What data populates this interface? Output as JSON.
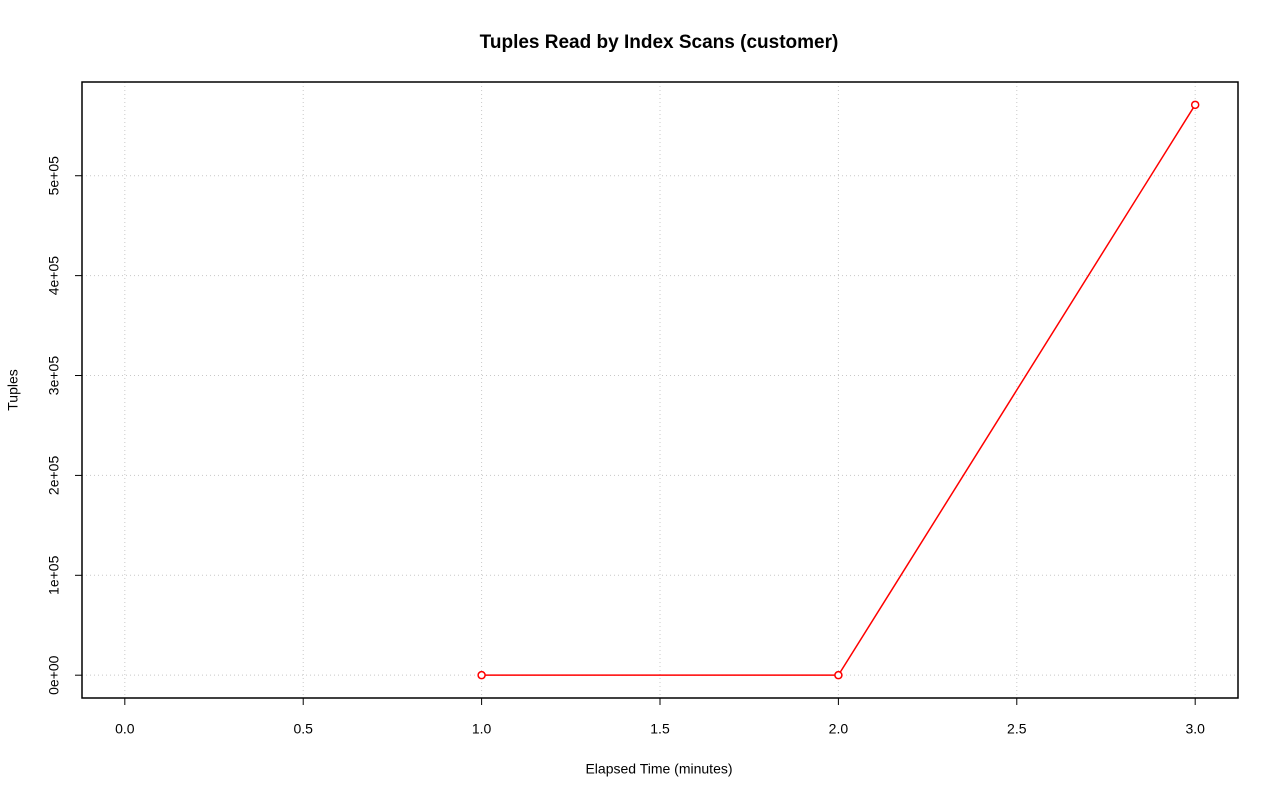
{
  "chart_data": {
    "type": "line",
    "title": "Tuples Read by Index Scans (customer)",
    "x_label": "Elapsed Time (minutes)",
    "y_label": "Tuples",
    "x": [
      1,
      2,
      3
    ],
    "series": [
      {
        "name": "customer",
        "color": "#ff0000",
        "values": [
          0,
          0,
          571000
        ]
      }
    ],
    "xlim": [
      -0.12,
      3.12
    ],
    "ylim": [
      -22840,
      593840
    ],
    "xticks": [
      {
        "value": 0,
        "label": "0.0"
      },
      0.5,
      {
        "value": 1,
        "label": "1.0"
      },
      1.5,
      {
        "value": 2,
        "label": "2.0"
      },
      2.5,
      {
        "value": 3,
        "label": "3.0"
      }
    ],
    "yticks": [
      {
        "value": 0,
        "label": "0e+00"
      },
      {
        "value": 100000,
        "label": "1e+05"
      },
      {
        "value": 200000,
        "label": "2e+05"
      },
      {
        "value": 300000,
        "label": "3e+05"
      },
      {
        "value": 400000,
        "label": "4e+05"
      },
      {
        "value": 500000,
        "label": "5e+05"
      }
    ],
    "grid": true
  }
}
